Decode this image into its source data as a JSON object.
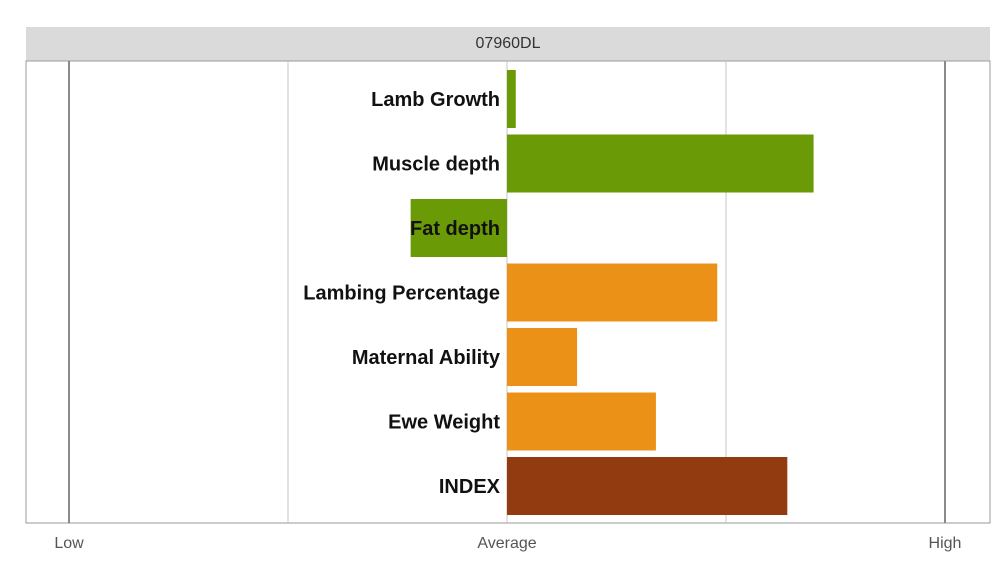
{
  "chart_data": {
    "type": "bar",
    "orientation": "horizontal",
    "title": "07960DL",
    "categories": [
      "Lamb Growth",
      "Muscle depth",
      "Fat depth",
      "Lambing Percentage",
      "Maternal Ability",
      "Ewe Weight",
      "INDEX"
    ],
    "values": [
      0.02,
      0.7,
      -0.22,
      0.48,
      0.16,
      0.34,
      0.64
    ],
    "bar_colors": [
      "#6a9a06",
      "#6a9a06",
      "#6a9a06",
      "#ec9117",
      "#ec9117",
      "#ec9117",
      "#923a10"
    ],
    "xlim": [
      -1,
      1
    ],
    "tick_values": [
      -1,
      0,
      1
    ],
    "tick_labels": [
      "Low",
      "Average",
      "High"
    ],
    "gridlines": [
      -1,
      -0.5,
      0,
      0.5,
      1
    ]
  }
}
